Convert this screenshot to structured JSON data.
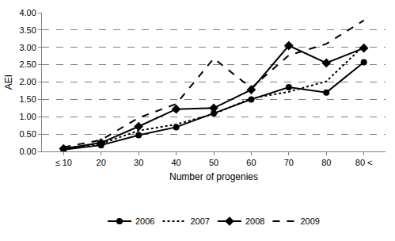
{
  "chart_data": {
    "type": "line",
    "x_label": "Number of progenies",
    "y_label": "AEI",
    "categories": [
      "≤ 10",
      "20",
      "30",
      "40",
      "50",
      "60",
      "70",
      "80",
      "80 <"
    ],
    "series": [
      {
        "name": "2006",
        "color": "#000000",
        "marker": "circle",
        "line_style": "solid",
        "values": [
          0.05,
          0.18,
          0.47,
          0.7,
          1.1,
          1.5,
          1.85,
          1.7,
          2.57
        ]
      },
      {
        "name": "2007",
        "color": "#000000",
        "marker": "none",
        "line_style": "dot",
        "values": [
          0.07,
          0.22,
          0.6,
          0.78,
          1.08,
          1.53,
          1.72,
          2.02,
          3.05
        ]
      },
      {
        "name": "2008",
        "color": "#000000",
        "marker": "diamond",
        "line_style": "solid",
        "values": [
          0.08,
          0.25,
          0.72,
          1.22,
          1.25,
          1.78,
          3.05,
          2.55,
          2.98
        ]
      },
      {
        "name": "2009",
        "color": "#000000",
        "marker": "none",
        "line_style": "dash",
        "values": [
          0.12,
          0.33,
          0.97,
          1.37,
          2.68,
          1.83,
          2.77,
          3.1,
          3.78
        ]
      }
    ],
    "ylim": [
      0,
      4
    ],
    "yticks": [
      {
        "value": 0,
        "label": "0.00"
      },
      {
        "value": 0.5,
        "label": "0.50"
      },
      {
        "value": 1,
        "label": "1.00"
      },
      {
        "value": 1.5,
        "label": "1.50"
      },
      {
        "value": 2,
        "label": "2.00"
      },
      {
        "value": 2.5,
        "label": "2.50"
      },
      {
        "value": 3,
        "label": "3.00"
      },
      {
        "value": 3.5,
        "label": "3.50"
      },
      {
        "value": 4,
        "label": "4.00"
      }
    ],
    "grid": true,
    "legend": "bottom"
  }
}
